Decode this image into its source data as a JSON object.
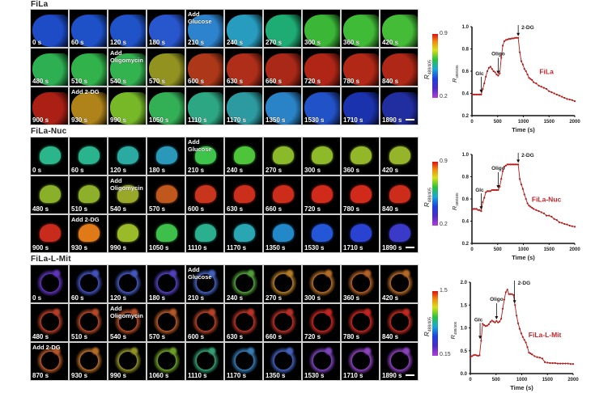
{
  "colors": {
    "trace": "#b31b1b",
    "axis": "#111111",
    "label_red": "#c0262b"
  },
  "sections": [
    {
      "title": "FiLa",
      "tiles": [
        {
          "time": "0 s",
          "note": "",
          "color": "#1f4fd0"
        },
        {
          "time": "60 s",
          "note": "",
          "color": "#1f55d2"
        },
        {
          "time": "120 s",
          "note": "",
          "color": "#2157d2"
        },
        {
          "time": "180 s",
          "note": "",
          "color": "#2a5ad8"
        },
        {
          "time": "210 s",
          "note": "Add\nGlucose",
          "color": "#2f8ad8"
        },
        {
          "time": "240 s",
          "note": "",
          "color": "#2aa4c8"
        },
        {
          "time": "270 s",
          "note": "",
          "color": "#1fb47a"
        },
        {
          "time": "300 s",
          "note": "",
          "color": "#3ec03a"
        },
        {
          "time": "360 s",
          "note": "",
          "color": "#44c53a"
        },
        {
          "time": "420 s",
          "note": "",
          "color": "#48c63a"
        },
        {
          "time": "480 s",
          "note": "",
          "color": "#2fb856"
        },
        {
          "time": "510 s",
          "note": "",
          "color": "#34bb4e"
        },
        {
          "time": "540 s",
          "note": "Add\nOligomycin",
          "color": "#36bb54"
        },
        {
          "time": "570 s",
          "note": "",
          "color": "#9a9a22"
        },
        {
          "time": "600 s",
          "note": "",
          "color": "#b63a1a"
        },
        {
          "time": "630 s",
          "note": "",
          "color": "#b8301a"
        },
        {
          "time": "660 s",
          "note": "",
          "color": "#b22a18"
        },
        {
          "time": "720 s",
          "note": "",
          "color": "#b82818"
        },
        {
          "time": "780 s",
          "note": "",
          "color": "#bb2a18"
        },
        {
          "time": "840 s",
          "note": "",
          "color": "#b82a18"
        },
        {
          "time": "900 s",
          "note": "",
          "color": "#b32216"
        },
        {
          "time": "930 s",
          "note": "Add 2-DG",
          "color": "#b88a1a"
        },
        {
          "time": "990 s",
          "note": "",
          "color": "#7cc22a"
        },
        {
          "time": "1050 s",
          "note": "",
          "color": "#36b85a"
        },
        {
          "time": "1110 s",
          "note": "",
          "color": "#2fb08a"
        },
        {
          "time": "1170 s",
          "note": "",
          "color": "#2ea2a8"
        },
        {
          "time": "1350 s",
          "note": "",
          "color": "#2c8ad0"
        },
        {
          "time": "1530 s",
          "note": "",
          "color": "#2456d2"
        },
        {
          "time": "1710 s",
          "note": "",
          "color": "#1c35b6"
        },
        {
          "time": "1890 s",
          "note": "",
          "color": "#2230a8"
        }
      ],
      "colorbar": {
        "label": "R",
        "subscript": "488/405",
        "max": "0.9",
        "min": "0.2"
      },
      "chart": {
        "type": "line",
        "title": "",
        "series_label": "FiLa",
        "xlabel": "Time (s)",
        "ylabel": "R",
        "ylabel_sub": "488/405",
        "xlim": [
          0,
          2000
        ],
        "ylim": [
          0.2,
          1.0
        ],
        "xticks": [
          "0",
          "500",
          "1000",
          "1500",
          "2000"
        ],
        "yticks": [
          "0.2",
          "0.4",
          "0.6",
          "0.8",
          "1.0"
        ],
        "annotations": [
          {
            "text": "Glc",
            "x": 180
          },
          {
            "text": "Oligo",
            "x": 510
          },
          {
            "text": "2-DG",
            "x": 900
          }
        ]
      }
    },
    {
      "title": "FiLa-Nuc",
      "tiles": [
        {
          "time": "0 s",
          "note": "",
          "color": "#2ab58a"
        },
        {
          "time": "60 s",
          "note": "",
          "color": "#2ab48e"
        },
        {
          "time": "120 s",
          "note": "",
          "color": "#2aaaa0"
        },
        {
          "time": "180 s",
          "note": "",
          "color": "#2a98b8"
        },
        {
          "time": "210 s",
          "note": "Add\nGlucose",
          "color": "#3ec44a"
        },
        {
          "time": "240 s",
          "note": "",
          "color": "#4ec43a"
        },
        {
          "time": "270 s",
          "note": "",
          "color": "#8aba2a"
        },
        {
          "time": "300 s",
          "note": "",
          "color": "#8eba2a"
        },
        {
          "time": "360 s",
          "note": "",
          "color": "#92b82a"
        },
        {
          "time": "420 s",
          "note": "",
          "color": "#96b42a"
        },
        {
          "time": "480 s",
          "note": "",
          "color": "#8ab02a"
        },
        {
          "time": "510 s",
          "note": "",
          "color": "#8eaf2a"
        },
        {
          "time": "540 s",
          "note": "Add\nOligomycin",
          "color": "#9aa82a"
        },
        {
          "time": "570 s",
          "note": "",
          "color": "#c0581e"
        },
        {
          "time": "600 s",
          "note": "",
          "color": "#c8341c"
        },
        {
          "time": "630 s",
          "note": "",
          "color": "#cc2e1c"
        },
        {
          "time": "660 s",
          "note": "",
          "color": "#cc2c1a"
        },
        {
          "time": "720 s",
          "note": "",
          "color": "#d02a1a"
        },
        {
          "time": "780 s",
          "note": "",
          "color": "#d22a1a"
        },
        {
          "time": "840 s",
          "note": "",
          "color": "#cc2c1a"
        },
        {
          "time": "900 s",
          "note": "",
          "color": "#c82a1c"
        },
        {
          "time": "930 s",
          "note": "Add 2-DG",
          "color": "#e07a18"
        },
        {
          "time": "990 s",
          "note": "",
          "color": "#9aba2a"
        },
        {
          "time": "1050 s",
          "note": "",
          "color": "#3ebf4a"
        },
        {
          "time": "1110 s",
          "note": "",
          "color": "#2ab08e"
        },
        {
          "time": "1170 s",
          "note": "",
          "color": "#2aa6b2"
        },
        {
          "time": "1350 s",
          "note": "",
          "color": "#2288c8"
        },
        {
          "time": "1530 s",
          "note": "",
          "color": "#2456d8"
        },
        {
          "time": "1710 s",
          "note": "",
          "color": "#2a42d2"
        },
        {
          "time": "1890 s",
          "note": "",
          "color": "#3a3ac8"
        }
      ],
      "colorbar": {
        "label": "R",
        "subscript": "488/405",
        "max": "0.9",
        "min": "0.2"
      },
      "chart": {
        "type": "line",
        "title": "",
        "series_label": "FiLa-Nuc",
        "xlabel": "Time (s)",
        "ylabel": "R",
        "ylabel_sub": "488/405",
        "xlim": [
          0,
          2000
        ],
        "ylim": [
          0.2,
          1.0
        ],
        "xticks": [
          "0",
          "500",
          "1000",
          "1500",
          "2000"
        ],
        "yticks": [
          "0.2",
          "0.4",
          "0.6",
          "0.8",
          "1.0"
        ],
        "annotations": [
          {
            "text": "Glc",
            "x": 180
          },
          {
            "text": "Oligo",
            "x": 510
          },
          {
            "text": "2-DG",
            "x": 900
          }
        ]
      }
    },
    {
      "title": "FiLa-L-Mit",
      "tiles": [
        {
          "time": "0 s",
          "note": "",
          "color": "#6a3ad0"
        },
        {
          "time": "60 s",
          "note": "",
          "color": "#4a5ad0"
        },
        {
          "time": "120 s",
          "note": "",
          "color": "#4a62d2"
        },
        {
          "time": "180 s",
          "note": "",
          "color": "#5a48d2"
        },
        {
          "time": "210 s",
          "note": "Add\nGlucose",
          "color": "#4a6ad0"
        },
        {
          "time": "240 s",
          "note": "",
          "color": "#5ab040"
        },
        {
          "time": "270 s",
          "note": "",
          "color": "#c88a2a"
        },
        {
          "time": "300 s",
          "note": "",
          "color": "#c8782a"
        },
        {
          "time": "360 s",
          "note": "",
          "color": "#c86a2a"
        },
        {
          "time": "420 s",
          "note": "",
          "color": "#c8742a"
        },
        {
          "time": "480 s",
          "note": "",
          "color": "#c8442a"
        },
        {
          "time": "510 s",
          "note": "",
          "color": "#c8502a"
        },
        {
          "time": "540 s",
          "note": "Add\nOligomycin",
          "color": "#c8542a"
        },
        {
          "time": "570 s",
          "note": "",
          "color": "#c8602a"
        },
        {
          "time": "600 s",
          "note": "",
          "color": "#c8482a"
        },
        {
          "time": "630 s",
          "note": "",
          "color": "#cc382a"
        },
        {
          "time": "660 s",
          "note": "",
          "color": "#d0342a"
        },
        {
          "time": "720 s",
          "note": "",
          "color": "#d82a24"
        },
        {
          "time": "780 s",
          "note": "",
          "color": "#d82a24"
        },
        {
          "time": "840 s",
          "note": "",
          "color": "#d42e24"
        },
        {
          "time": "870 s",
          "note": "Add 2-DG",
          "color": "#c8602a"
        },
        {
          "time": "930 s",
          "note": "",
          "color": "#c8782a"
        },
        {
          "time": "990 s",
          "note": "",
          "color": "#a0a02a"
        },
        {
          "time": "1060 s",
          "note": "",
          "color": "#78b02a"
        },
        {
          "time": "1110 s",
          "note": "",
          "color": "#3ab080"
        },
        {
          "time": "1170 s",
          "note": "",
          "color": "#3a88c8"
        },
        {
          "time": "1350 s",
          "note": "",
          "color": "#4a6ad0"
        },
        {
          "time": "1530 s",
          "note": "",
          "color": "#8a4ad0"
        },
        {
          "time": "1710 s",
          "note": "",
          "color": "#9a48d0"
        },
        {
          "time": "1890 s",
          "note": "",
          "color": "#9a46d0"
        }
      ],
      "colorbar": {
        "label": "R",
        "subscript": "488/405",
        "max": "1.5",
        "min": "0.15"
      },
      "chart": {
        "type": "line",
        "title": "",
        "series_label": "FiLa-L-Mit",
        "xlabel": "Time (s)",
        "ylabel": "R",
        "ylabel_sub": "488/405",
        "xlim": [
          0,
          2000
        ],
        "ylim": [
          0.0,
          2.0
        ],
        "xticks": [
          "0",
          "500",
          "1000",
          "1500",
          "2000"
        ],
        "yticks": [
          "0.0",
          "0.5",
          "1.0",
          "1.5",
          "2.0"
        ],
        "annotations": [
          {
            "text": "Glc",
            "x": 190
          },
          {
            "text": "Oligo",
            "x": 510
          },
          {
            "text": "2-DG",
            "x": 860
          }
        ]
      }
    }
  ],
  "chart_data": [
    {
      "type": "line",
      "title": "FiLa",
      "xlabel": "Time (s)",
      "ylabel": "R488/405",
      "xlim": [
        0,
        2000
      ],
      "ylim": [
        0.2,
        1.0
      ],
      "series": [
        {
          "name": "FiLa",
          "x": [
            0,
            30,
            60,
            90,
            120,
            150,
            180,
            210,
            240,
            270,
            300,
            330,
            360,
            390,
            420,
            450,
            480,
            510,
            540,
            570,
            600,
            630,
            660,
            690,
            720,
            750,
            780,
            810,
            840,
            870,
            900,
            930,
            960,
            990,
            1020,
            1050,
            1080,
            1110,
            1140,
            1170,
            1200,
            1250,
            1300,
            1350,
            1400,
            1450,
            1500,
            1550,
            1600,
            1650,
            1700,
            1750,
            1800,
            1850,
            1900,
            1950,
            2000
          ],
          "y": [
            0.39,
            0.39,
            0.39,
            0.39,
            0.39,
            0.39,
            0.39,
            0.44,
            0.49,
            0.55,
            0.6,
            0.63,
            0.64,
            0.62,
            0.6,
            0.59,
            0.57,
            0.56,
            0.58,
            0.72,
            0.83,
            0.87,
            0.88,
            0.885,
            0.89,
            0.89,
            0.895,
            0.895,
            0.9,
            0.9,
            0.9,
            0.77,
            0.69,
            0.66,
            0.62,
            0.6,
            0.57,
            0.54,
            0.53,
            0.52,
            0.5,
            0.49,
            0.47,
            0.46,
            0.45,
            0.44,
            0.42,
            0.41,
            0.4,
            0.39,
            0.38,
            0.37,
            0.36,
            0.35,
            0.345,
            0.34,
            0.33
          ]
        }
      ],
      "annotations": [
        "Glc",
        "Oligo",
        "2-DG"
      ]
    },
    {
      "type": "line",
      "title": "FiLa-Nuc",
      "xlabel": "Time (s)",
      "ylabel": "R488/405",
      "xlim": [
        0,
        2000
      ],
      "ylim": [
        0.2,
        1.0
      ],
      "series": [
        {
          "name": "FiLa-Nuc",
          "x": [
            0,
            30,
            60,
            90,
            120,
            150,
            180,
            210,
            240,
            270,
            300,
            330,
            360,
            390,
            420,
            450,
            480,
            510,
            540,
            570,
            600,
            630,
            660,
            690,
            720,
            750,
            780,
            810,
            840,
            870,
            900,
            930,
            960,
            990,
            1020,
            1050,
            1080,
            1110,
            1140,
            1170,
            1200,
            1250,
            1300,
            1350,
            1400,
            1450,
            1500,
            1550,
            1600,
            1650,
            1700,
            1750,
            1800,
            1850,
            1900,
            1950,
            2000
          ],
          "y": [
            0.5,
            0.51,
            0.51,
            0.51,
            0.5,
            0.5,
            0.49,
            0.57,
            0.61,
            0.66,
            0.67,
            0.67,
            0.67,
            0.68,
            0.68,
            0.68,
            0.68,
            0.68,
            0.71,
            0.78,
            0.85,
            0.89,
            0.9,
            0.91,
            0.91,
            0.91,
            0.91,
            0.91,
            0.91,
            0.91,
            0.91,
            0.78,
            0.73,
            0.69,
            0.64,
            0.6,
            0.56,
            0.54,
            0.53,
            0.52,
            0.51,
            0.5,
            0.49,
            0.48,
            0.47,
            0.45,
            0.45,
            0.44,
            0.42,
            0.41,
            0.39,
            0.385,
            0.375,
            0.37,
            0.36,
            0.355,
            0.35
          ]
        }
      ],
      "annotations": [
        "Glc",
        "Oligo",
        "2-DG"
      ]
    },
    {
      "type": "line",
      "title": "FiLa-L-Mit",
      "xlabel": "Time (s)",
      "ylabel": "R488/405",
      "xlim": [
        0,
        2000
      ],
      "ylim": [
        0.0,
        2.0
      ],
      "series": [
        {
          "name": "FiLa-L-Mit",
          "x": [
            0,
            30,
            60,
            90,
            120,
            150,
            180,
            210,
            240,
            270,
            300,
            330,
            360,
            390,
            420,
            450,
            480,
            510,
            540,
            570,
            600,
            630,
            660,
            690,
            720,
            750,
            780,
            810,
            840,
            870,
            900,
            930,
            960,
            990,
            1020,
            1050,
            1080,
            1110,
            1140,
            1170,
            1200,
            1250,
            1300,
            1350,
            1400,
            1450,
            1500,
            1550,
            1600,
            1650,
            1700,
            1750,
            1800,
            1850,
            1900,
            1950,
            2000
          ],
          "y": [
            0.36,
            0.38,
            0.4,
            0.41,
            0.4,
            0.39,
            0.4,
            0.72,
            1.09,
            1.06,
            1.04,
            1.05,
            1.08,
            1.13,
            1.16,
            1.14,
            1.12,
            1.15,
            1.12,
            1.14,
            1.2,
            1.42,
            1.62,
            1.78,
            1.84,
            1.74,
            1.74,
            1.74,
            1.72,
            1.5,
            1.27,
            1.1,
            0.98,
            0.88,
            0.8,
            0.74,
            0.68,
            0.58,
            0.46,
            0.44,
            0.42,
            0.38,
            0.36,
            0.35,
            0.33,
            0.25,
            0.24,
            0.23,
            0.23,
            0.23,
            0.22,
            0.22,
            0.22,
            0.22,
            0.22,
            0.21,
            0.21
          ]
        }
      ],
      "annotations": [
        "Glc",
        "Oligo",
        "2-DG"
      ]
    }
  ]
}
